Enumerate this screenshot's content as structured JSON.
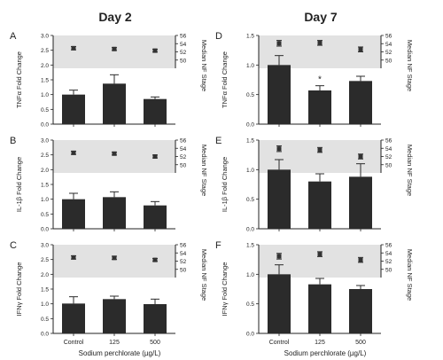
{
  "columns": [
    {
      "title": "Day 2"
    },
    {
      "title": "Day 7"
    }
  ],
  "xlabel": "Sodium perchlorate (µg/L)",
  "categories": [
    "Control",
    "125",
    "500"
  ],
  "colors": {
    "bar": "#2b2b2b",
    "band": "#e2e2e2",
    "marker": "#333333"
  },
  "chart_data": [
    {
      "type": "bar",
      "panel": "A",
      "day": "Day 2",
      "categories": [
        "Control",
        "125",
        "500"
      ],
      "ylabel": "TNFα Fold Change",
      "ylim": [
        0,
        3.0
      ],
      "yticks": [
        "0.0",
        "0.5",
        "1.0",
        "1.5",
        "2.0",
        "2.5",
        "3.0"
      ],
      "values": [
        1.0,
        1.37,
        0.85
      ],
      "errors": [
        0.15,
        0.3,
        0.07
      ],
      "stage_label": "Median NF Stage",
      "stage_ylim": [
        48,
        56
      ],
      "stage_ticks": [
        "50",
        "52",
        "54",
        "56"
      ],
      "stage_values": [
        52.9,
        52.7,
        52.3
      ],
      "stage_errors": [
        0.4,
        0.35,
        0.35
      ],
      "annotations": []
    },
    {
      "type": "bar",
      "panel": "B",
      "day": "Day 2",
      "categories": [
        "Control",
        "125",
        "500"
      ],
      "ylabel": "IL-1β Fold Change",
      "ylim": [
        0,
        3.0
      ],
      "yticks": [
        "0.0",
        "0.5",
        "1.0",
        "1.5",
        "2.0",
        "2.5",
        "3.0"
      ],
      "values": [
        1.0,
        1.07,
        0.79
      ],
      "errors": [
        0.2,
        0.18,
        0.13
      ],
      "stage_label": "Median NF Stage",
      "stage_ylim": [
        48,
        56
      ],
      "stage_ticks": [
        "50",
        "52",
        "54",
        "56"
      ],
      "stage_values": [
        52.9,
        52.7,
        52.0
      ],
      "stage_errors": [
        0.4,
        0.35,
        0.35
      ],
      "annotations": []
    },
    {
      "type": "bar",
      "panel": "C",
      "day": "Day 2",
      "categories": [
        "Control",
        "125",
        "500"
      ],
      "ylabel": "IFNγ Fold Change",
      "ylim": [
        0,
        3.0
      ],
      "yticks": [
        "0.0",
        "0.5",
        "1.0",
        "1.5",
        "2.0",
        "2.5",
        "3.0"
      ],
      "values": [
        1.01,
        1.16,
        0.99
      ],
      "errors": [
        0.23,
        0.1,
        0.17
      ],
      "stage_label": "Median NF Stage",
      "stage_ylim": [
        48,
        56
      ],
      "stage_ticks": [
        "50",
        "52",
        "54",
        "56"
      ],
      "stage_values": [
        52.9,
        52.8,
        52.3
      ],
      "stage_errors": [
        0.4,
        0.4,
        0.35
      ],
      "annotations": []
    },
    {
      "type": "bar",
      "panel": "D",
      "day": "Day 7",
      "categories": [
        "Control",
        "125",
        "500"
      ],
      "ylabel": "TNFα Fold Change",
      "ylim": [
        0,
        1.5
      ],
      "yticks": [
        "0.0",
        "0.5",
        "1.0",
        "1.5"
      ],
      "values": [
        1.0,
        0.57,
        0.73
      ],
      "errors": [
        0.16,
        0.08,
        0.08
      ],
      "stage_label": "Median NF Stage",
      "stage_ylim": [
        48,
        56
      ],
      "stage_ticks": [
        "50",
        "52",
        "54",
        "56"
      ],
      "stage_values": [
        54.1,
        54.2,
        52.6
      ],
      "stage_errors": [
        0.7,
        0.6,
        0.6
      ],
      "annotations": [
        {
          "category": "125",
          "text": "*"
        }
      ]
    },
    {
      "type": "bar",
      "panel": "E",
      "day": "Day 7",
      "categories": [
        "Control",
        "125",
        "500"
      ],
      "ylabel": "IL-1β Fold Change",
      "ylim": [
        0,
        1.5
      ],
      "yticks": [
        "0.0",
        "0.5",
        "1.0",
        "1.5"
      ],
      "values": [
        1.0,
        0.8,
        0.88
      ],
      "errors": [
        0.17,
        0.13,
        0.22
      ],
      "stage_label": "Median NF Stage",
      "stage_ylim": [
        48,
        56
      ],
      "stage_ticks": [
        "50",
        "52",
        "54",
        "56"
      ],
      "stage_values": [
        53.9,
        53.6,
        52.0
      ],
      "stage_errors": [
        0.7,
        0.6,
        0.6
      ],
      "annotations": []
    },
    {
      "type": "bar",
      "panel": "F",
      "day": "Day 7",
      "categories": [
        "Control",
        "125",
        "500"
      ],
      "ylabel": "IFNγ Fold Change",
      "ylim": [
        0,
        1.5
      ],
      "yticks": [
        "0.0",
        "0.5",
        "1.0",
        "1.5"
      ],
      "values": [
        1.0,
        0.83,
        0.75
      ],
      "errors": [
        0.16,
        0.1,
        0.06
      ],
      "stage_label": "Median NF Stage",
      "stage_ylim": [
        48,
        56
      ],
      "stage_ticks": [
        "50",
        "52",
        "54",
        "56"
      ],
      "stage_values": [
        53.2,
        53.7,
        52.3
      ],
      "stage_errors": [
        0.7,
        0.6,
        0.6
      ],
      "annotations": []
    }
  ]
}
